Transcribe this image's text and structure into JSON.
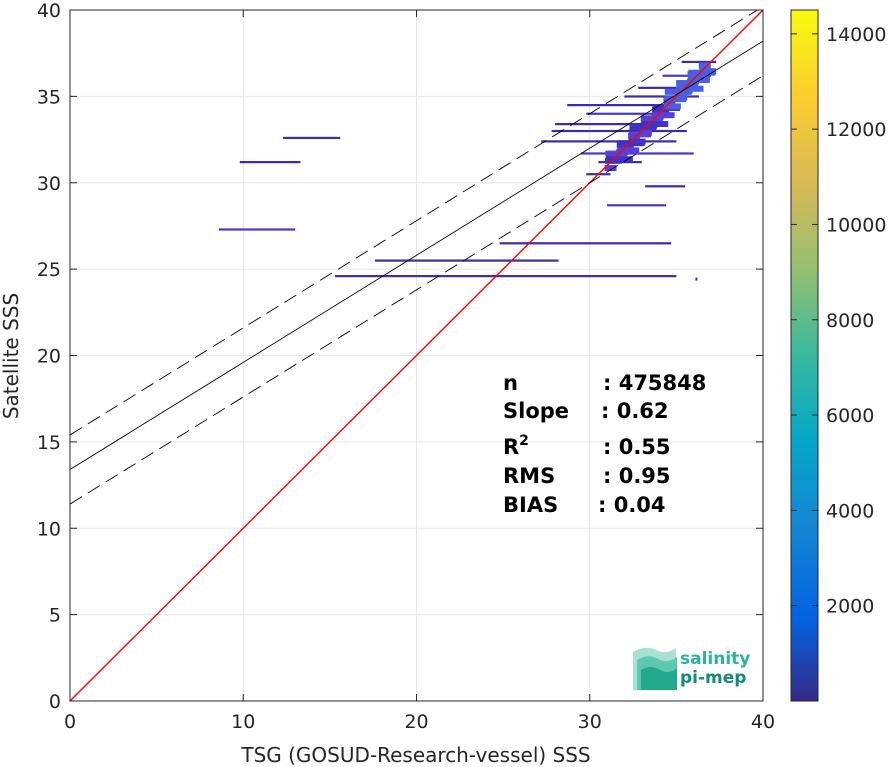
{
  "chart_data": {
    "type": "heatmap",
    "title": "",
    "xlabel": "TSG (GOSUD-Research-vessel) SSS",
    "ylabel": "Satellite SSS",
    "xlim": [
      0,
      40
    ],
    "ylim": [
      0,
      40
    ],
    "x_ticks": [
      "0",
      "10",
      "20",
      "30",
      "40"
    ],
    "y_ticks": [
      "0",
      "5",
      "10",
      "15",
      "20",
      "25",
      "30",
      "35",
      "40"
    ],
    "grid": true,
    "colorbar": {
      "range": [
        0,
        14500
      ],
      "ticks": [
        "2000",
        "4000",
        "6000",
        "8000",
        "10000",
        "12000",
        "14000"
      ],
      "tick_values": [
        2000,
        4000,
        6000,
        8000,
        10000,
        12000,
        14000
      ],
      "colormap": "parula"
    },
    "lines": [
      {
        "kind": "identity",
        "intercept": 0,
        "slope": 1,
        "color": "#ff0000",
        "style": "solid"
      },
      {
        "kind": "regression",
        "intercept": 13.4,
        "slope": 0.62,
        "color": "#000000",
        "style": "solid"
      },
      {
        "kind": "regression-upper",
        "intercept": 15.4,
        "slope": 0.62,
        "color": "#000000",
        "style": "dashed"
      },
      {
        "kind": "regression-lower",
        "intercept": 11.4,
        "slope": 0.62,
        "color": "#000000",
        "style": "dashed"
      }
    ],
    "density_segments": [
      {
        "y": 32.6,
        "x0": 12.3,
        "x1": 15.6
      },
      {
        "y": 31.2,
        "x0": 9.8,
        "x1": 13.3
      },
      {
        "y": 27.3,
        "x0": 8.6,
        "x1": 13.0
      },
      {
        "y": 24.6,
        "x0": 15.3,
        "x1": 35.0
      },
      {
        "y": 25.5,
        "x0": 17.6,
        "x1": 28.2
      },
      {
        "y": 26.5,
        "x0": 24.8,
        "x1": 34.7
      },
      {
        "y": 28.7,
        "x0": 31.0,
        "x1": 34.4
      },
      {
        "y": 29.8,
        "x0": 33.2,
        "x1": 35.5
      },
      {
        "y": 30.5,
        "x0": 29.8,
        "x1": 31.2
      },
      {
        "y": 31.2,
        "x0": 30.5,
        "x1": 33.0
      },
      {
        "y": 31.7,
        "x0": 29.5,
        "x1": 36.0
      },
      {
        "y": 32.4,
        "x0": 27.2,
        "x1": 35.0
      },
      {
        "y": 33.0,
        "x0": 27.8,
        "x1": 35.6
      },
      {
        "y": 33.4,
        "x0": 28.0,
        "x1": 34.2
      },
      {
        "y": 34.0,
        "x0": 29.8,
        "x1": 34.9
      },
      {
        "y": 34.5,
        "x0": 28.7,
        "x1": 35.2
      },
      {
        "y": 35.0,
        "x0": 32.0,
        "x1": 36.3
      },
      {
        "y": 35.5,
        "x0": 32.8,
        "x1": 36.5
      },
      {
        "y": 36.2,
        "x0": 34.2,
        "x1": 37.0
      },
      {
        "y": 37.0,
        "x0": 35.3,
        "x1": 37.3
      }
    ],
    "stats": [
      {
        "label": "n",
        "value": ": 475848"
      },
      {
        "label": "Slope",
        "value": ": 0.62"
      },
      {
        "label": "R",
        "sup": "2",
        "value": ": 0.55"
      },
      {
        "label": "RMS",
        "value": ": 0.95"
      },
      {
        "label": "BIAS",
        "value": ": 0.04"
      }
    ]
  },
  "logo": {
    "line1": "salinity",
    "line2": "pi-mep"
  }
}
